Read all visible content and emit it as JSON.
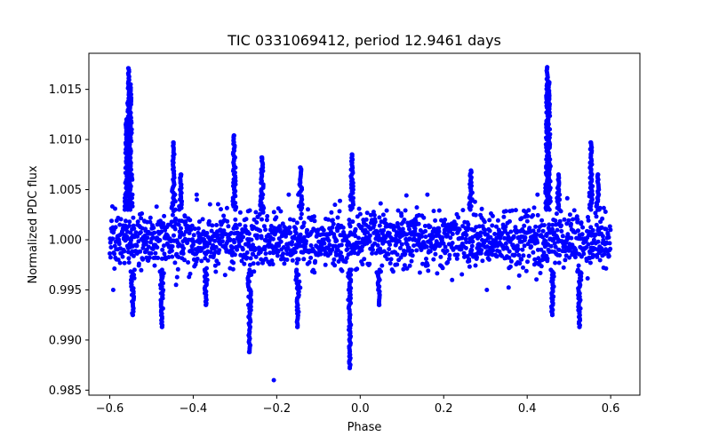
{
  "chart_data": {
    "type": "scatter",
    "title": "TIC 0331069412, period 12.9461 days",
    "xlabel": "Phase",
    "ylabel": "Normalized PDC flux",
    "xlim": [
      -0.65,
      0.67
    ],
    "ylim": [
      0.9845,
      1.0186
    ],
    "x_ticks": [
      -0.6,
      -0.4,
      -0.2,
      0.0,
      0.2,
      0.4,
      0.6
    ],
    "x_tick_labels": [
      "−0.6",
      "−0.4",
      "−0.2",
      "0.0",
      "0.2",
      "0.4",
      "0.6"
    ],
    "y_ticks": [
      0.985,
      0.99,
      0.995,
      1.0,
      1.005,
      1.01,
      1.015
    ],
    "y_tick_labels": [
      "0.985",
      "0.990",
      "0.995",
      "1.000",
      "1.005",
      "1.010",
      "1.015"
    ],
    "marker_color": "#0000ff",
    "phase_range": [
      -0.6,
      0.6
    ],
    "baseline_flux": 1.0,
    "baseline_scatter": 0.0025,
    "features": [
      {
        "phase": -0.555,
        "flux": 1.0171,
        "kind": "flare"
      },
      {
        "phase": -0.55,
        "flux": 1.0155,
        "kind": "flare"
      },
      {
        "phase": -0.56,
        "flux": 1.012,
        "kind": "flare"
      },
      {
        "phase": -0.545,
        "flux": 0.9925,
        "kind": "dip"
      },
      {
        "phase": -0.475,
        "flux": 0.9913,
        "kind": "dip"
      },
      {
        "phase": -0.447,
        "flux": 1.0097,
        "kind": "flare"
      },
      {
        "phase": -0.43,
        "flux": 1.0065,
        "kind": "flare"
      },
      {
        "phase": -0.37,
        "flux": 0.9935,
        "kind": "dip"
      },
      {
        "phase": -0.302,
        "flux": 1.0104,
        "kind": "flare"
      },
      {
        "phase": -0.265,
        "flux": 0.9888,
        "kind": "dip"
      },
      {
        "phase": -0.235,
        "flux": 1.0082,
        "kind": "flare"
      },
      {
        "phase": -0.207,
        "flux": 0.986,
        "kind": "point"
      },
      {
        "phase": -0.15,
        "flux": 0.9913,
        "kind": "dip"
      },
      {
        "phase": -0.143,
        "flux": 1.0072,
        "kind": "flare"
      },
      {
        "phase": -0.025,
        "flux": 0.9872,
        "kind": "dip"
      },
      {
        "phase": -0.02,
        "flux": 1.0085,
        "kind": "flare"
      },
      {
        "phase": 0.045,
        "flux": 0.9935,
        "kind": "dip"
      },
      {
        "phase": 0.265,
        "flux": 1.0069,
        "kind": "flare"
      },
      {
        "phase": 0.448,
        "flux": 1.0172,
        "kind": "flare"
      },
      {
        "phase": 0.452,
        "flux": 1.0157,
        "kind": "flare"
      },
      {
        "phase": 0.46,
        "flux": 0.9925,
        "kind": "dip"
      },
      {
        "phase": 0.475,
        "flux": 1.0065,
        "kind": "flare"
      },
      {
        "phase": 0.525,
        "flux": 0.9913,
        "kind": "dip"
      },
      {
        "phase": 0.553,
        "flux": 1.0097,
        "kind": "flare"
      },
      {
        "phase": 0.57,
        "flux": 1.0065,
        "kind": "flare"
      }
    ]
  }
}
